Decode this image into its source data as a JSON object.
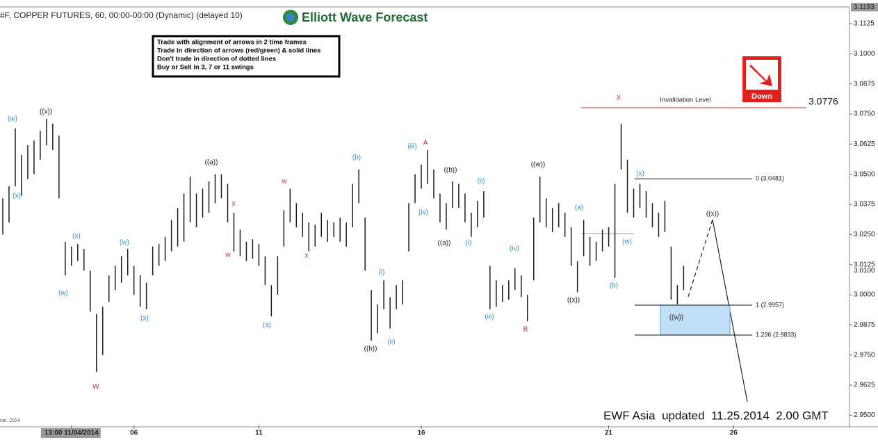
{
  "chart_data": {
    "type": "ohlc",
    "title": "#F, COPPER FUTURES, 60, 00:00-00:00 (Dynamic) (delayed 10)",
    "brand": "Elliott Wave Forecast",
    "rules": [
      "Trade with alignment of arrows in 2 time frames",
      "Trade in direction of arrows (red/green) & solid lines",
      "Don't trade in direction of dotted lines",
      "Buy or Sell in 3, 7 or 11 swings"
    ],
    "signal": "Down",
    "footer": "EWF Asia  updated  11.25.2014  2.00 GMT",
    "copyright": "nal, 2014",
    "color": "#1a1a1a",
    "high": [
      3.04,
      3.045,
      3.069,
      3.058,
      3.062,
      3.064,
      3.068,
      3.073,
      3.071,
      3.066,
      3.022,
      3.02,
      3.021,
      3.019,
      3.01,
      2.992,
      2.995,
      3.008,
      3.012,
      3.016,
      3.019,
      3.012,
      3.008,
      3.005,
      3.02,
      3.021,
      3.024,
      3.031,
      3.036,
      3.042,
      3.049,
      3.042,
      3.044,
      3.047,
      3.05,
      3.05,
      3.046,
      3.034,
      3.027,
      3.022,
      3.023,
      3.021,
      3.016,
      3.004,
      3.016,
      3.035,
      3.044,
      3.038,
      3.034,
      3.03,
      3.029,
      3.034,
      3.031,
      3.03,
      3.032,
      3.03,
      3.046,
      3.052,
      3.032,
      3.002,
      2.996,
      3.006,
      2.999,
      3.004,
      3.006,
      3.038,
      3.05,
      3.054,
      3.06,
      3.052,
      3.042,
      3.038,
      3.047,
      3.046,
      3.042,
      3.034,
      3.039,
      3.043,
      3.012,
      3.006,
      3.004,
      3.006,
      3.011,
      3.008,
      3.0,
      3.032,
      3.049,
      3.04,
      3.036,
      3.038,
      3.034,
      3.028,
      3.014,
      3.031,
      3.024,
      3.022,
      3.027,
      3.028,
      3.046,
      3.071,
      3.056,
      3.044,
      3.046,
      3.043,
      3.038,
      3.034,
      3.039,
      3.02,
      3.004,
      3.012
    ],
    "low": [
      3.025,
      3.03,
      3.045,
      3.041,
      3.048,
      3.05,
      3.056,
      3.062,
      3.06,
      3.04,
      3.008,
      3.012,
      3.014,
      3.01,
      2.993,
      2.968,
      2.975,
      2.997,
      3.002,
      3.005,
      3.008,
      3.0,
      2.995,
      2.994,
      3.008,
      3.012,
      3.014,
      3.018,
      3.02,
      3.022,
      3.03,
      3.028,
      3.032,
      3.034,
      3.038,
      3.04,
      3.03,
      3.018,
      3.016,
      3.014,
      3.015,
      3.012,
      3.004,
      2.991,
      3.0,
      3.02,
      3.03,
      3.028,
      3.024,
      3.018,
      3.02,
      3.024,
      3.022,
      3.024,
      3.022,
      3.02,
      3.028,
      3.038,
      3.01,
      2.981,
      2.984,
      2.994,
      2.986,
      2.994,
      2.996,
      3.018,
      3.038,
      3.044,
      3.046,
      3.04,
      3.03,
      3.027,
      3.036,
      3.036,
      3.03,
      3.024,
      3.028,
      3.032,
      2.994,
      2.995,
      2.997,
      2.998,
      3.002,
      2.999,
      2.989,
      3.006,
      3.03,
      3.028,
      3.026,
      3.028,
      3.024,
      3.012,
      3.001,
      3.016,
      3.012,
      3.014,
      3.018,
      3.02,
      3.007,
      3.052,
      3.034,
      3.032,
      3.036,
      3.032,
      3.028,
      3.024,
      3.026,
      2.998,
      2.996,
      3.002
    ],
    "xlim": [
      0,
      136
    ],
    "xticks": [
      {
        "value": 11,
        "label": "13:00 11/04/2014"
      },
      {
        "value": 21,
        "label": "06"
      },
      {
        "value": 41,
        "label": "11"
      },
      {
        "value": 67,
        "label": "16"
      },
      {
        "value": 97,
        "label": "21"
      },
      {
        "value": 117,
        "label": "26"
      }
    ],
    "ylim": [
      2.9458,
      3.1194
    ],
    "yticks": [
      {
        "value": 3.1125,
        "label": "3.1125"
      },
      {
        "value": 3.1,
        "label": "3.1000"
      },
      {
        "value": 3.0875,
        "label": "3.0875"
      },
      {
        "value": 3.075,
        "label": "3.0750"
      },
      {
        "value": 3.0625,
        "label": "3.0625"
      },
      {
        "value": 3.05,
        "label": "3.0500"
      },
      {
        "value": 3.0375,
        "label": "3.0375"
      },
      {
        "value": 3.025,
        "label": "3.0250"
      },
      {
        "value": 3.0125,
        "label": "3.0125"
      },
      {
        "value": 3.0,
        "label": "3.0000"
      },
      {
        "value": 2.9875,
        "label": "2.9875"
      },
      {
        "value": 2.975,
        "label": "2.9750"
      },
      {
        "value": 2.9625,
        "label": "2.9625"
      },
      {
        "value": 2.95,
        "label": "2.9500"
      }
    ],
    "price_markers": [
      3.1193,
      {
        "value": 3.01,
        "label": "3.0100"
      }
    ],
    "invalidation": {
      "label": "Invalidation Level",
      "value": 3.0776
    },
    "fib_levels": [
      {
        "value": 3.0481,
        "label": "0 (3.0481)"
      },
      {
        "value": 2.9957,
        "label": "1 (2.9957)"
      },
      {
        "value": 2.9833,
        "label": "1.236 (2.9833)"
      }
    ],
    "annotations": [
      "(w)",
      "(x)",
      "((x))",
      "(x)",
      "(w)",
      "W",
      "(w)",
      "(x)",
      "((a))",
      "x",
      "w",
      "(a)",
      "w",
      "x",
      "(b)",
      "((b))",
      "(i)",
      "(ii)",
      "(iii)",
      "A",
      "(iv)",
      "((b))",
      "((a))",
      "(i)",
      "(ii)",
      "(iv)",
      "(iii)",
      "B",
      "((w))",
      "(a)",
      "((x))",
      "(b)",
      "X",
      "(x)",
      "(w)",
      "((w))",
      "((x))"
    ]
  }
}
